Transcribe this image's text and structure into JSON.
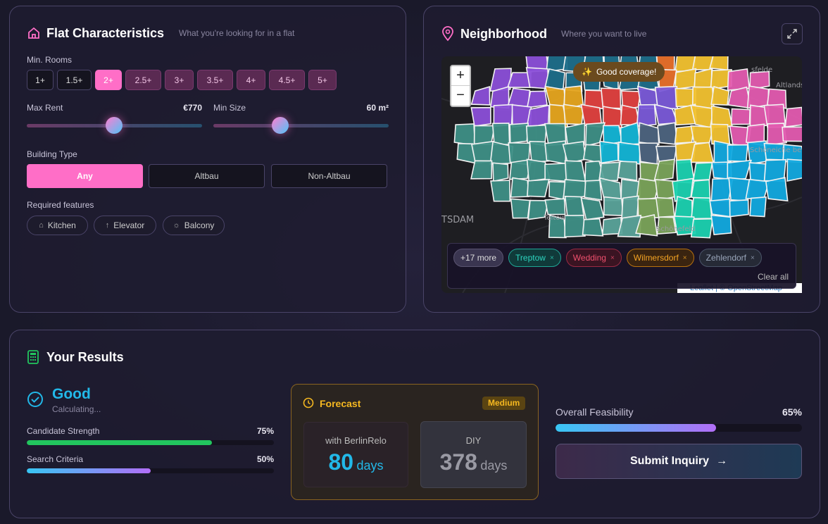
{
  "flat": {
    "title": "Flat Characteristics",
    "subtitle": "What you're looking for in a flat",
    "rooms_label": "Min. Rooms",
    "rooms": [
      "1+",
      "1.5+",
      "2+",
      "2.5+",
      "3+",
      "3.5+",
      "4+",
      "4.5+",
      "5+"
    ],
    "max_rent_label": "Max Rent",
    "max_rent": "€770",
    "min_size_label": "Min Size",
    "min_size": "60 m²",
    "building_type_label": "Building Type",
    "building_types": [
      "Any",
      "Altbau",
      "Non-Altbau"
    ],
    "features_label": "Required features",
    "features": [
      "Kitchen",
      "Elevator",
      "Balcony"
    ]
  },
  "neighborhood": {
    "title": "Neighborhood",
    "subtitle": "Where you want to live",
    "coverage": "Good coverage!",
    "zoom_in": "+",
    "zoom_out": "−",
    "map_labels": [
      "sfelde",
      "Altlandsb",
      "Schöneiche bei Berlin",
      "TSDAM",
      "Teltow",
      "Schönefeld"
    ],
    "chips": [
      "+17 more",
      "Treptow",
      "Wedding",
      "Wilmersdorf",
      "Zehlendorf"
    ],
    "clear": "Clear all",
    "attribution": "Leaflet | © OpenStreetMap"
  },
  "results": {
    "title": "Your Results",
    "status": "Good",
    "status_sub": "Calculating...",
    "metrics": [
      {
        "label": "Candidate Strength",
        "value": 75,
        "value_label": "75%"
      },
      {
        "label": "Search Criteria",
        "value": 50,
        "value_label": "50%"
      }
    ],
    "forecast": {
      "title": "Forecast",
      "badge": "Medium",
      "berlinrelo_label": "with BerlinRelo",
      "berlinrelo_days": 80,
      "diy_label": "DIY",
      "diy_days": 378,
      "unit": "days"
    },
    "feasibility": {
      "label": "Overall Feasibility",
      "value": 65,
      "value_label": "65%"
    },
    "submit": "Submit Inquiry"
  }
}
